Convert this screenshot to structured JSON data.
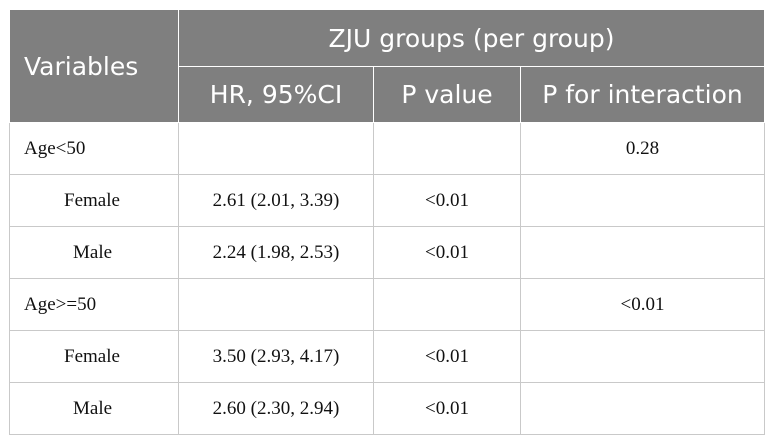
{
  "header": {
    "variables": "Variables",
    "group": "ZJU groups (per group)",
    "hr_ci": "HR, 95%CI",
    "p_value": "P value",
    "p_interaction": "P for interaction"
  },
  "rows": [
    {
      "variable": "Age<50",
      "hr": "",
      "p": "",
      "p_interaction": "0.28"
    },
    {
      "variable": "Female",
      "hr": "2.61 (2.01, 3.39)",
      "p": "<0.01",
      "p_interaction": ""
    },
    {
      "variable": "Male",
      "hr": "2.24 (1.98, 2.53)",
      "p": "<0.01",
      "p_interaction": ""
    },
    {
      "variable": "Age>=50",
      "hr": "",
      "p": "",
      "p_interaction": "<0.01"
    },
    {
      "variable": "Female",
      "hr": "3.50 (2.93, 4.17)",
      "p": "<0.01",
      "p_interaction": ""
    },
    {
      "variable": "Male",
      "hr": "2.60 (2.30, 2.94)",
      "p": "<0.01",
      "p_interaction": ""
    }
  ]
}
